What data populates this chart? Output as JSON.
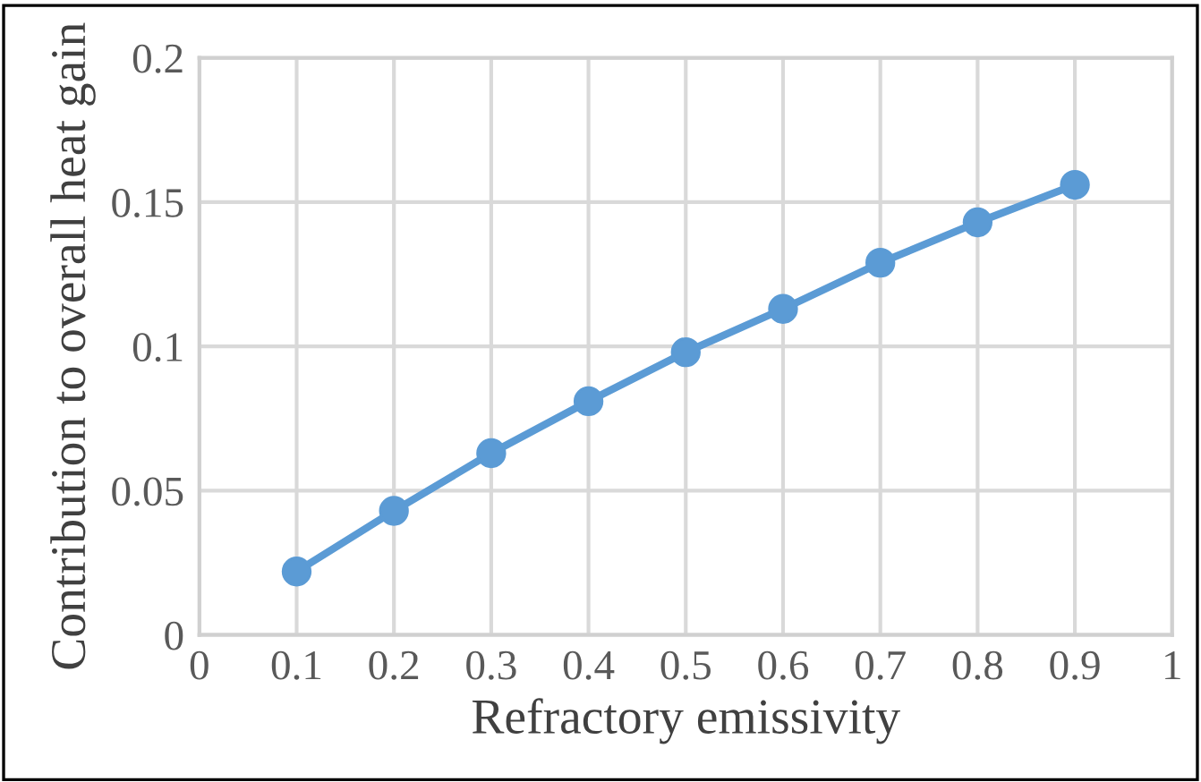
{
  "chart_data": {
    "type": "line",
    "xlabel": "Refractory emissivity",
    "ylabel": "Contribution to overall heat gain",
    "x": [
      0.1,
      0.2,
      0.3,
      0.4,
      0.5,
      0.6,
      0.7,
      0.8,
      0.9
    ],
    "series": [
      {
        "color": "#5b9bd5",
        "values": [
          0.022,
          0.043,
          0.063,
          0.081,
          0.098,
          0.113,
          0.129,
          0.143,
          0.156
        ]
      }
    ],
    "xlim": [
      0,
      1
    ],
    "xticks": [
      0,
      0.1,
      0.2,
      0.3,
      0.4,
      0.5,
      0.6,
      0.7,
      0.8,
      0.9,
      1
    ],
    "ylim": [
      0,
      0.2
    ],
    "yticks": [
      0,
      0.05,
      0.1,
      0.15,
      0.2
    ],
    "grid": true,
    "marker": "circle",
    "line_style": "solid"
  }
}
